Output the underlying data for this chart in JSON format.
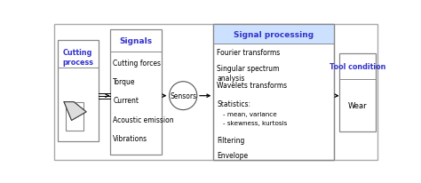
{
  "bg_color": "#ffffff",
  "outer_border_color": "#aaaaaa",
  "title_color": "#3333cc",
  "box_edge_color": "#888888",
  "box_fill": "#ffffff",
  "signal_proc_hdr_fill": "#cce0ff",
  "cutting_label": "Cutting\nprocess",
  "signals_header": "Signals",
  "signals_items": [
    "Cutting forces",
    "Torque",
    "Current",
    "Acoustic emission",
    "Vibrations"
  ],
  "sensors_label": "Sensors",
  "signal_proc_header": "Signal processing",
  "signal_proc_items": [
    "Fourier transforms",
    "Singular spectrum\nanalysis",
    "Wavelets transforms",
    "Statistics:",
    "- mean, variance",
    "- skewness, kurtosis",
    "Filtering",
    "Envelope"
  ],
  "tool_header": "Tool condition",
  "tool_item": "Wear",
  "fig_w": 4.74,
  "fig_h": 2.07,
  "dpi": 100
}
